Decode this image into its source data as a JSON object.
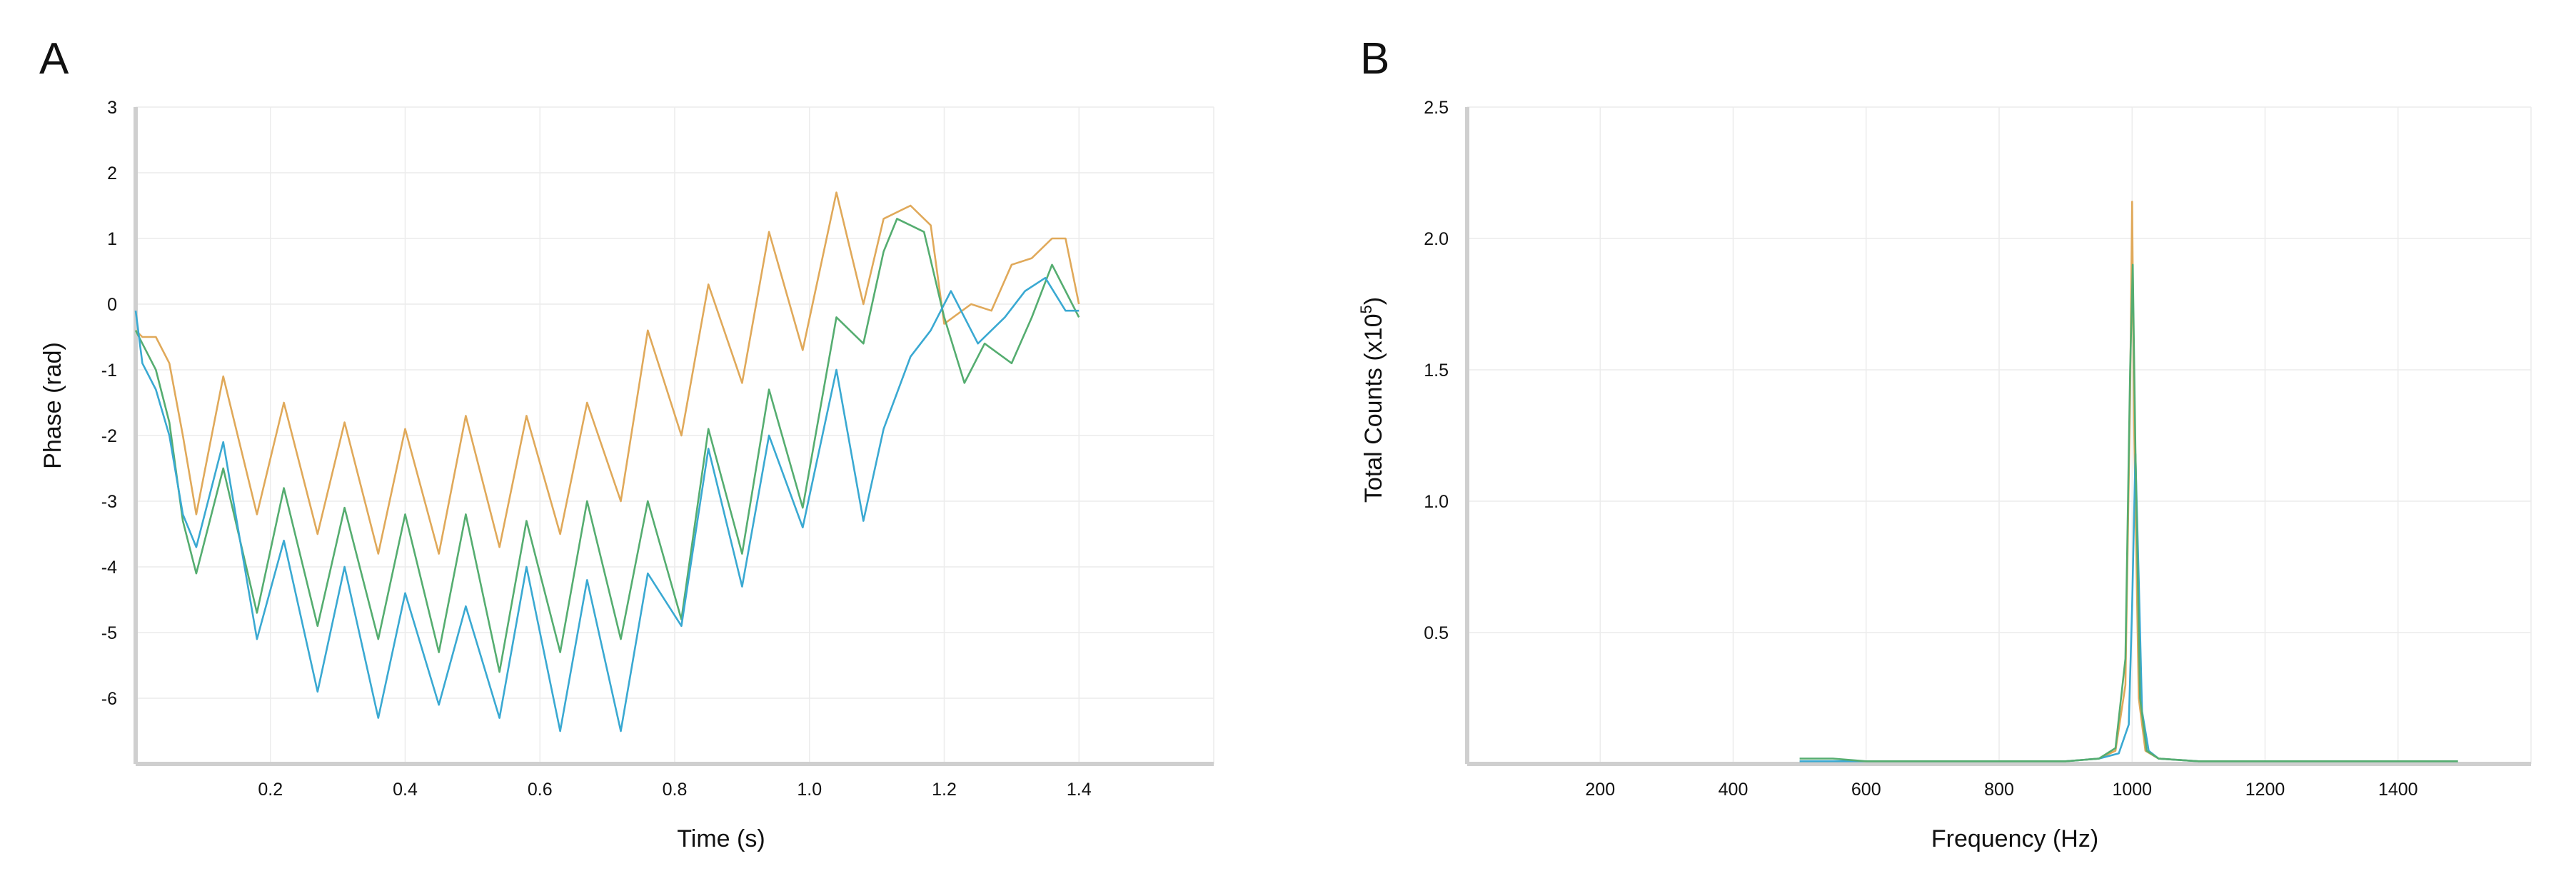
{
  "chart_data": [
    {
      "panel": "A",
      "type": "line",
      "xlabel": "Time (s)",
      "ylabel": "Phase (rad)",
      "xlim": [
        0,
        1.6
      ],
      "ylim": [
        -7,
        3
      ],
      "xticks": [
        "0.2",
        "0.4",
        "0.6",
        "0.8",
        "1.0",
        "1.2",
        "1.4"
      ],
      "yticks": [
        "3",
        "2",
        "1",
        "0",
        "-1",
        "-2",
        "-3",
        "-4",
        "-5",
        "-6"
      ],
      "grid": true,
      "legend": "none",
      "series": [
        {
          "color": "#e0a95a",
          "x": [
            0.0,
            0.01,
            0.03,
            0.05,
            0.07,
            0.09,
            0.13,
            0.18,
            0.22,
            0.27,
            0.31,
            0.36,
            0.4,
            0.45,
            0.49,
            0.54,
            0.58,
            0.63,
            0.67,
            0.72,
            0.76,
            0.81,
            0.85,
            0.9,
            0.94,
            0.99,
            1.04,
            1.08,
            1.11,
            1.15,
            1.18,
            1.2,
            1.24,
            1.27,
            1.3,
            1.33,
            1.36,
            1.38,
            1.4
          ],
          "y": [
            -0.4,
            -0.5,
            -0.5,
            -0.9,
            -2.0,
            -3.2,
            -1.1,
            -3.2,
            -1.5,
            -3.5,
            -1.8,
            -3.8,
            -1.9,
            -3.8,
            -1.7,
            -3.7,
            -1.7,
            -3.5,
            -1.5,
            -3.0,
            -0.4,
            -2.0,
            0.3,
            -1.2,
            1.1,
            -0.7,
            1.7,
            0.0,
            1.3,
            1.5,
            1.2,
            -0.3,
            0.0,
            -0.1,
            0.6,
            0.7,
            1.0,
            1.0,
            0.0
          ]
        },
        {
          "color": "#55ad70",
          "x": [
            0.0,
            0.01,
            0.03,
            0.05,
            0.07,
            0.09,
            0.13,
            0.18,
            0.22,
            0.27,
            0.31,
            0.36,
            0.4,
            0.45,
            0.49,
            0.54,
            0.58,
            0.63,
            0.67,
            0.72,
            0.76,
            0.81,
            0.85,
            0.9,
            0.94,
            0.99,
            1.04,
            1.08,
            1.11,
            1.13,
            1.15,
            1.17,
            1.2,
            1.23,
            1.26,
            1.3,
            1.33,
            1.36,
            1.38,
            1.4
          ],
          "y": [
            -0.4,
            -0.6,
            -1.0,
            -1.8,
            -3.3,
            -4.1,
            -2.5,
            -4.7,
            -2.8,
            -4.9,
            -3.1,
            -5.1,
            -3.2,
            -5.3,
            -3.2,
            -5.6,
            -3.3,
            -5.3,
            -3.0,
            -5.1,
            -3.0,
            -4.8,
            -1.9,
            -3.8,
            -1.3,
            -3.1,
            -0.2,
            -0.6,
            0.8,
            1.3,
            1.2,
            1.1,
            -0.2,
            -1.2,
            -0.6,
            -0.9,
            -0.2,
            0.6,
            0.2,
            -0.2
          ]
        },
        {
          "color": "#3aa9d2",
          "x": [
            0.0,
            0.01,
            0.03,
            0.05,
            0.07,
            0.09,
            0.13,
            0.18,
            0.22,
            0.27,
            0.31,
            0.36,
            0.4,
            0.45,
            0.49,
            0.54,
            0.58,
            0.63,
            0.67,
            0.72,
            0.76,
            0.81,
            0.85,
            0.9,
            0.94,
            0.99,
            1.04,
            1.08,
            1.11,
            1.15,
            1.18,
            1.21,
            1.25,
            1.29,
            1.32,
            1.35,
            1.38,
            1.4
          ],
          "y": [
            -0.1,
            -0.9,
            -1.3,
            -2.0,
            -3.2,
            -3.7,
            -2.1,
            -5.1,
            -3.6,
            -5.9,
            -4.0,
            -6.3,
            -4.4,
            -6.1,
            -4.6,
            -6.3,
            -4.0,
            -6.5,
            -4.2,
            -6.5,
            -4.1,
            -4.9,
            -2.2,
            -4.3,
            -2.0,
            -3.4,
            -1.0,
            -3.3,
            -1.9,
            -0.8,
            -0.4,
            0.2,
            -0.6,
            -0.2,
            0.2,
            0.4,
            -0.1,
            -0.1
          ]
        }
      ]
    },
    {
      "panel": "B",
      "type": "line",
      "xlabel": "Frequency (Hz)",
      "ylabel": "Total Counts (x10",
      "ylabel_sup": "5",
      "ylabel_end": ")",
      "xlim": [
        0,
        1600
      ],
      "ylim": [
        0,
        2.5
      ],
      "xticks": [
        "200",
        "400",
        "600",
        "800",
        "1000",
        "1200",
        "1400"
      ],
      "yticks": [
        "2.5",
        "2.0",
        "1.5",
        "1.0",
        "0.5"
      ],
      "grid": true,
      "legend": "none",
      "series": [
        {
          "color": "#e0a95a",
          "x": [
            500,
            600,
            700,
            800,
            900,
            950,
            975,
            990,
            997,
            1000,
            1003,
            1010,
            1020,
            1040,
            1100,
            1200,
            1300,
            1400,
            1490
          ],
          "y": [
            0.01,
            0.01,
            0.01,
            0.01,
            0.01,
            0.02,
            0.05,
            0.3,
            1.4,
            2.14,
            1.3,
            0.25,
            0.05,
            0.02,
            0.01,
            0.01,
            0.01,
            0.01,
            0.01
          ]
        },
        {
          "color": "#3aa9d2",
          "x": [
            500,
            600,
            700,
            800,
            900,
            950,
            980,
            995,
            1000,
            1005,
            1010,
            1015,
            1025,
            1040,
            1100,
            1200,
            1300,
            1400,
            1490
          ],
          "y": [
            0.01,
            0.01,
            0.01,
            0.01,
            0.01,
            0.02,
            0.04,
            0.15,
            0.6,
            1.18,
            0.7,
            0.2,
            0.05,
            0.02,
            0.01,
            0.01,
            0.01,
            0.01,
            0.01
          ]
        },
        {
          "color": "#55ad70",
          "x": [
            500,
            550,
            600,
            700,
            800,
            900,
            950,
            975,
            990,
            997,
            1001,
            1005,
            1012,
            1022,
            1040,
            1100,
            1200,
            1300,
            1400,
            1490
          ],
          "y": [
            0.02,
            0.02,
            0.01,
            0.01,
            0.01,
            0.01,
            0.02,
            0.06,
            0.4,
            1.5,
            1.9,
            1.2,
            0.25,
            0.05,
            0.02,
            0.01,
            0.01,
            0.01,
            0.01,
            0.01
          ]
        }
      ]
    }
  ]
}
